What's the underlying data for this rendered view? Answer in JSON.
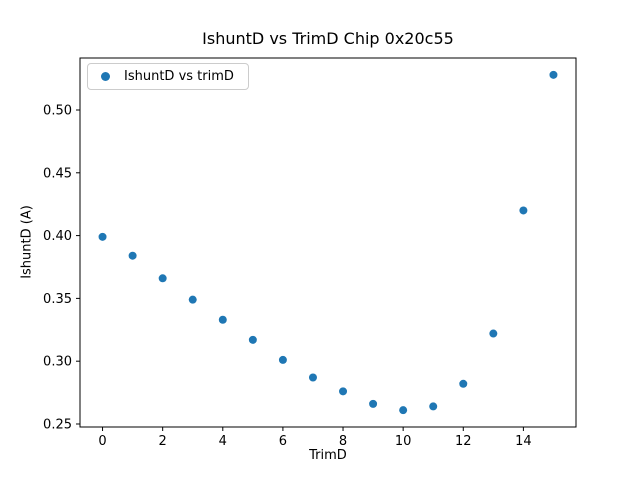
{
  "figure": {
    "title": "IshuntD vs TrimD Chip 0x20c55",
    "xlabel": "TrimD",
    "ylabel": "IshuntD (A)",
    "legend_label": "IshuntD vs trimD",
    "marker_color": "#1f77b4"
  },
  "chart_data": {
    "type": "scatter",
    "title": "IshuntD vs TrimD Chip 0x20c55",
    "xlabel": "TrimD",
    "ylabel": "IshuntD (A)",
    "legend": [
      "IshuntD vs trimD"
    ],
    "legend_position": "upper left",
    "grid": false,
    "x": [
      0,
      1,
      2,
      3,
      4,
      5,
      6,
      7,
      8,
      9,
      10,
      11,
      12,
      13,
      14,
      15
    ],
    "y": [
      0.399,
      0.384,
      0.366,
      0.349,
      0.333,
      0.317,
      0.301,
      0.287,
      0.276,
      0.266,
      0.261,
      0.264,
      0.282,
      0.322,
      0.42,
      0.528
    ],
    "xlim": [
      -0.75,
      15.75
    ],
    "ylim": [
      0.2476,
      0.5414
    ],
    "xticks": [
      0,
      2,
      4,
      6,
      8,
      10,
      12,
      14
    ],
    "xticklabels": [
      "0",
      "2",
      "4",
      "6",
      "8",
      "10",
      "12",
      "14"
    ],
    "yticks": [
      0.25,
      0.3,
      0.35,
      0.4,
      0.45,
      0.5
    ],
    "yticklabels": [
      "0.25",
      "0.30",
      "0.35",
      "0.40",
      "0.45",
      "0.50"
    ],
    "marker_color": "#1f77b4"
  }
}
